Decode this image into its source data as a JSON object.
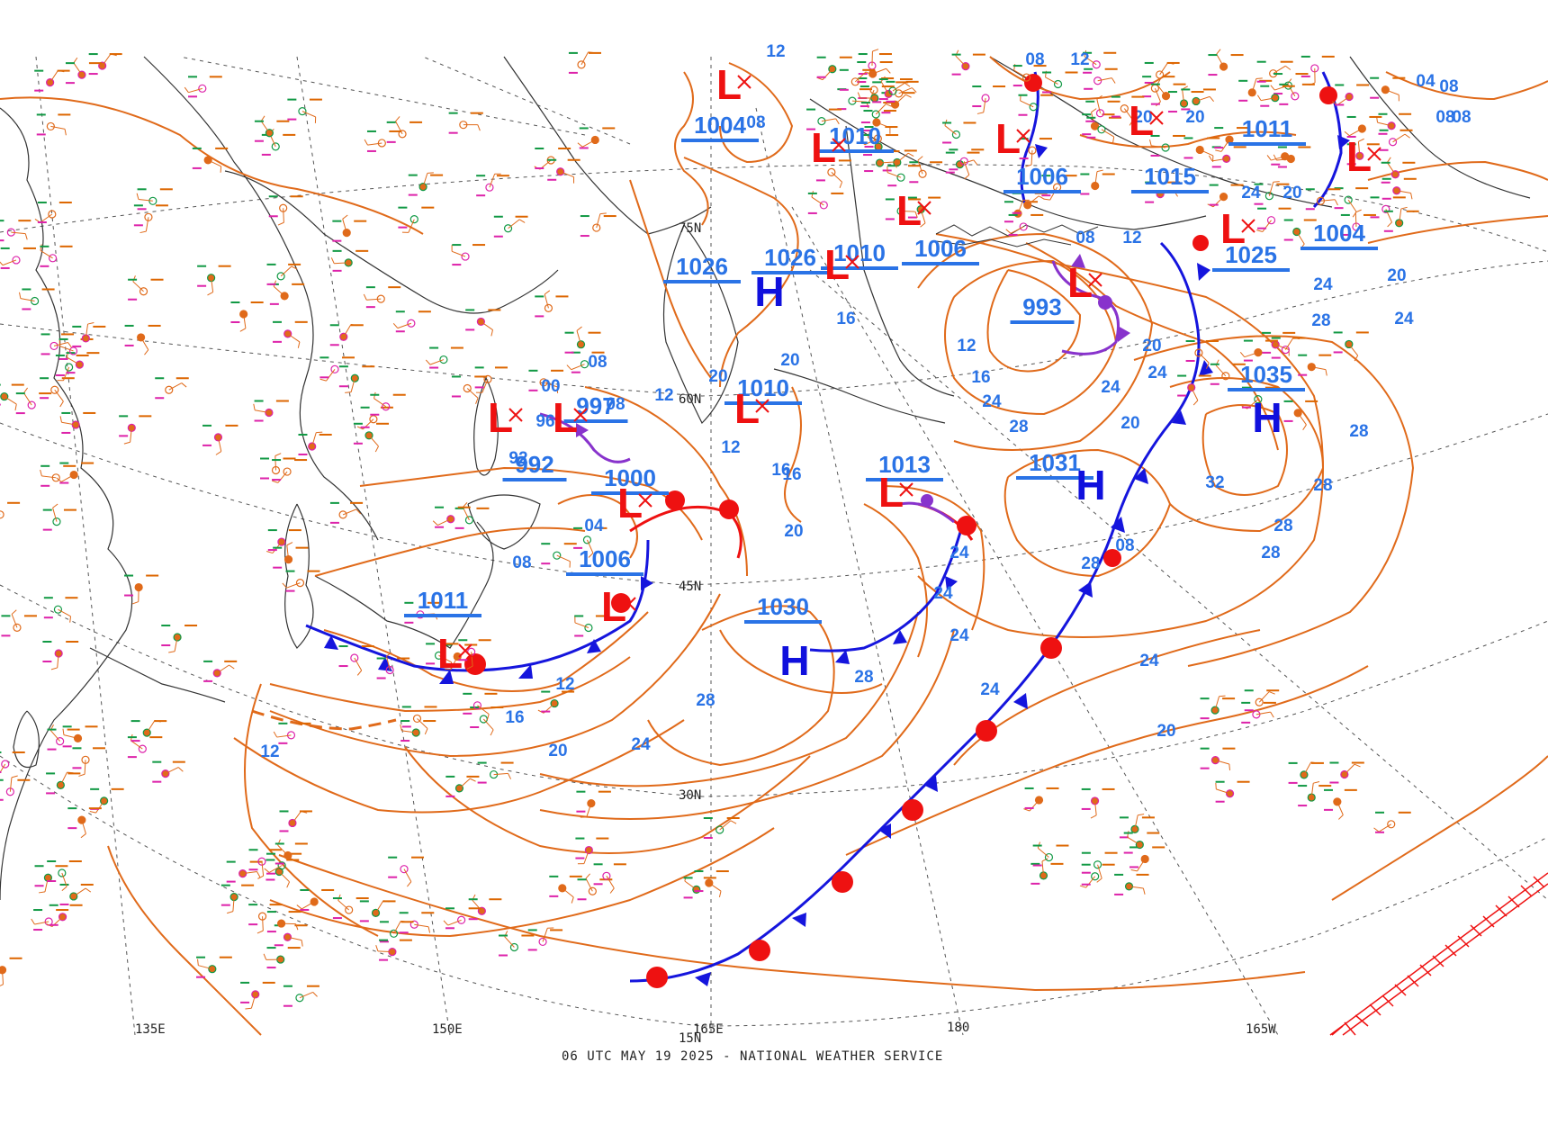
{
  "footer": {
    "credit": "06 UTC MAY 19 2025 - NATIONAL WEATHER SERVICE"
  },
  "graticule": {
    "lon_labels": [
      "135E",
      "150E",
      "165E",
      "180",
      "165W"
    ],
    "lat_labels": [
      "15N",
      "30N",
      "45N",
      "60N",
      "75N"
    ]
  },
  "isobars_label_values": [
    "08",
    "12",
    "16",
    "20",
    "24",
    "28",
    "32",
    "04",
    "00",
    "92",
    "96"
  ],
  "pressure_centers": [
    {
      "type": "L",
      "value": "1004"
    },
    {
      "type": "L",
      "value": "1010"
    },
    {
      "type": "L",
      "value": "1006"
    },
    {
      "type": "L",
      "value": "1015"
    },
    {
      "type": "L",
      "value": "1011"
    },
    {
      "type": "H",
      "value": "1026"
    },
    {
      "type": "H",
      "value": "1026"
    },
    {
      "type": "L",
      "value": "1010"
    },
    {
      "type": "L",
      "value": "1006"
    },
    {
      "type": "L",
      "value": "993"
    },
    {
      "type": "L",
      "value": "1025"
    },
    {
      "type": "L",
      "value": "1004"
    },
    {
      "type": "L",
      "value": "997"
    },
    {
      "type": "L",
      "value": "992"
    },
    {
      "type": "L",
      "value": "1010"
    },
    {
      "type": "H",
      "value": "1035"
    },
    {
      "type": "L",
      "value": "1000"
    },
    {
      "type": "L",
      "value": "1013"
    },
    {
      "type": "H",
      "value": "1031"
    },
    {
      "type": "L",
      "value": "1006"
    },
    {
      "type": "L",
      "value": "1011"
    },
    {
      "type": "H",
      "value": "1030"
    }
  ],
  "colors": {
    "isobar": "#e06a1a",
    "cold_front": "#1515dd",
    "warm_front": "#ee1111",
    "occluded": "#8833cc",
    "label": "#2a73e6",
    "high": "#1010dd",
    "low": "#ee1111",
    "grid": "#555555",
    "coast": "#333333"
  }
}
